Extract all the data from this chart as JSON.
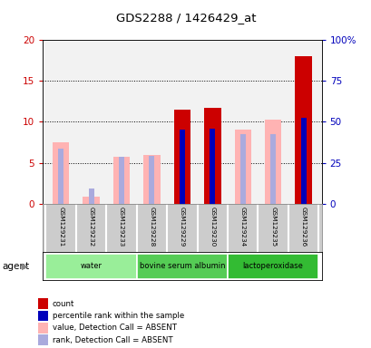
{
  "title": "GDS2288 / 1426429_at",
  "samples": [
    "GSM129231",
    "GSM129232",
    "GSM129233",
    "GSM129228",
    "GSM129229",
    "GSM129230",
    "GSM129234",
    "GSM129235",
    "GSM129236"
  ],
  "values": [
    7.5,
    0.8,
    5.7,
    5.9,
    11.5,
    11.7,
    9.0,
    10.3,
    18.0
  ],
  "ranks": [
    6.7,
    1.8,
    5.7,
    5.8,
    9.0,
    9.2,
    8.5,
    8.5,
    10.5
  ],
  "absent": [
    true,
    true,
    true,
    true,
    false,
    false,
    true,
    true,
    false
  ],
  "ylim_left": [
    0,
    20
  ],
  "ylim_right": [
    0,
    100
  ],
  "yticks_left": [
    0,
    5,
    10,
    15,
    20
  ],
  "yticks_right": [
    0,
    25,
    50,
    75,
    100
  ],
  "ytick_right_labels": [
    "0",
    "25",
    "50",
    "75",
    "100%"
  ],
  "color_red": "#cc0000",
  "color_pink": "#ffb3b3",
  "color_blue_dark": "#0000bb",
  "color_blue_light": "#aaaadd",
  "color_ylabel_left": "#cc0000",
  "color_ylabel_right": "#0000bb",
  "agent_groups": [
    {
      "label": "water",
      "start": 0,
      "end": 3,
      "color": "#99ee99"
    },
    {
      "label": "bovine serum albumin",
      "start": 3,
      "end": 6,
      "color": "#55cc55"
    },
    {
      "label": "lactoperoxidase",
      "start": 6,
      "end": 9,
      "color": "#33bb33"
    }
  ],
  "legend_items": [
    {
      "color": "#cc0000",
      "label": "count"
    },
    {
      "color": "#0000bb",
      "label": "percentile rank within the sample"
    },
    {
      "color": "#ffb3b3",
      "label": "value, Detection Call = ABSENT"
    },
    {
      "color": "#aaaadd",
      "label": "rank, Detection Call = ABSENT"
    }
  ],
  "background_plot": "#f2f2f2",
  "background_tick": "#cccccc"
}
